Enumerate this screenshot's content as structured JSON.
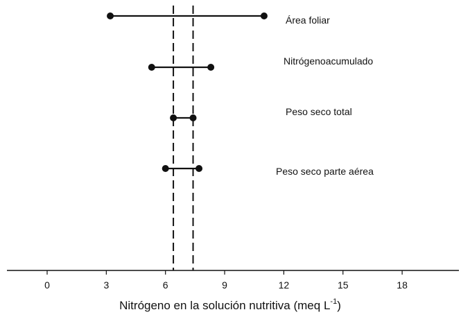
{
  "chart_data": {
    "type": "interval",
    "xlabel": "Nitrógeno en la solución nutritiva (meq L",
    "xlabel_superscript": "-1",
    "xlabel_suffix": ")",
    "xlim": [
      -2,
      20
    ],
    "xticks": [
      0,
      3,
      6,
      9,
      12,
      15,
      18
    ],
    "xtick_labels": [
      "0",
      "3",
      "6",
      "9",
      "12",
      "15",
      "18"
    ],
    "reference_lines": [
      {
        "x": 6.4,
        "style": "dashed"
      },
      {
        "x": 7.4,
        "style": "dashed"
      }
    ],
    "series": [
      {
        "name": "Área foliar",
        "low": 3.2,
        "high": 11.0
      },
      {
        "name": "Nitrógenoacumulado",
        "low": 5.3,
        "high": 8.3
      },
      {
        "name": "Peso seco total",
        "low": 6.4,
        "high": 7.4
      },
      {
        "name": "Peso seco parte aérea",
        "low": 6.0,
        "high": 7.7
      }
    ],
    "grid": false,
    "colors": {
      "line": "#111111",
      "background": "#ffffff"
    }
  }
}
